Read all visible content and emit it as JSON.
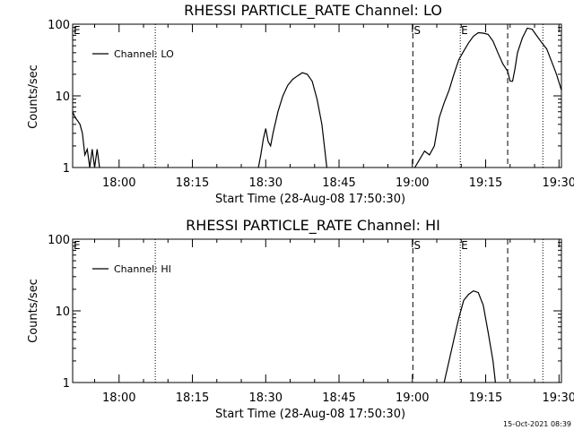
{
  "chart_data": [
    {
      "type": "line",
      "title": "RHESSI PARTICLE_RATE Channel: LO",
      "xlabel": "Start Time (28-Aug-08 17:50:30)",
      "ylabel": "Counts/sec",
      "y_scale": "log",
      "ylim": [
        1,
        100
      ],
      "xlim_minutes_from_start": [
        0,
        100
      ],
      "x_ticks": [
        "18:00",
        "18:15",
        "18:30",
        "18:45",
        "19:00",
        "19:15",
        "19:30"
      ],
      "y_ticks": [
        "1",
        "10",
        "100"
      ],
      "legend": {
        "position": "top-left",
        "entries": [
          "Channel: LO"
        ]
      },
      "series": [
        {
          "name": "Channel: LO",
          "points": [
            [
              0,
              6
            ],
            [
              0.5,
              5
            ],
            [
              1,
              4.5
            ],
            [
              1.5,
              4
            ],
            [
              2,
              3
            ],
            [
              2.5,
              1.5
            ],
            [
              3,
              1.8
            ],
            [
              3.5,
              1
            ],
            [
              4,
              1.8
            ],
            [
              4.5,
              1
            ],
            [
              5,
              1.8
            ],
            [
              5.5,
              1
            ],
            [
              38,
              1
            ],
            [
              38.5,
              1.5
            ],
            [
              39,
              2.5
            ],
            [
              39.5,
              3.5
            ],
            [
              40,
              2.3
            ],
            [
              40.5,
              2
            ],
            [
              41,
              3
            ],
            [
              42,
              6
            ],
            [
              43,
              10
            ],
            [
              44,
              14
            ],
            [
              45,
              17
            ],
            [
              46,
              19
            ],
            [
              47,
              21
            ],
            [
              48,
              20
            ],
            [
              49,
              16
            ],
            [
              50,
              9
            ],
            [
              51,
              4
            ],
            [
              52,
              1
            ],
            [
              70,
              1
            ],
            [
              71,
              1.3
            ],
            [
              72,
              1.7
            ],
            [
              73,
              1.5
            ],
            [
              74,
              2
            ],
            [
              75,
              5
            ],
            [
              76,
              8
            ],
            [
              77,
              12
            ],
            [
              78,
              20
            ],
            [
              79,
              32
            ],
            [
              80,
              42
            ],
            [
              81,
              55
            ],
            [
              82,
              68
            ],
            [
              83,
              76
            ],
            [
              84,
              75
            ],
            [
              85,
              72
            ],
            [
              86,
              58
            ],
            [
              87,
              40
            ],
            [
              88,
              28
            ],
            [
              89,
              22
            ],
            [
              89.5,
              16
            ],
            [
              90,
              16
            ],
            [
              90.5,
              24
            ],
            [
              91,
              40
            ],
            [
              92,
              64
            ],
            [
              93,
              88
            ],
            [
              94,
              85
            ],
            [
              95,
              68
            ],
            [
              96,
              55
            ],
            [
              97,
              45
            ],
            [
              98,
              30
            ],
            [
              99,
              20
            ],
            [
              100,
              12
            ]
          ]
        }
      ],
      "vlines": [
        {
          "minute": 16.9,
          "style": "dotted",
          "label": ""
        },
        {
          "minute": 69.6,
          "style": "dashed",
          "label": "S"
        },
        {
          "minute": 79.3,
          "style": "dotted",
          "label": "E"
        },
        {
          "minute": 89.0,
          "style": "dashed",
          "label": ""
        },
        {
          "minute": 96.2,
          "style": "dotted",
          "label": ""
        }
      ],
      "edge_label": "E"
    },
    {
      "type": "line",
      "title": "RHESSI PARTICLE_RATE Channel: HI",
      "xlabel": "Start Time (28-Aug-08 17:50:30)",
      "ylabel": "Counts/sec",
      "y_scale": "log",
      "ylim": [
        1,
        100
      ],
      "xlim_minutes_from_start": [
        0,
        100
      ],
      "x_ticks": [
        "18:00",
        "18:15",
        "18:30",
        "18:45",
        "19:00",
        "19:15",
        "19:30"
      ],
      "y_ticks": [
        "1",
        "10",
        "100"
      ],
      "legend": {
        "position": "top-left",
        "entries": [
          "Channel: HI"
        ]
      },
      "series": [
        {
          "name": "Channel: HI",
          "points": [
            [
              76,
              1
            ],
            [
              77,
              2
            ],
            [
              78,
              4
            ],
            [
              79,
              8
            ],
            [
              80,
              14
            ],
            [
              81,
              17
            ],
            [
              82,
              19
            ],
            [
              83,
              18
            ],
            [
              84,
              12
            ],
            [
              85,
              5
            ],
            [
              86,
              2
            ],
            [
              86.5,
              1
            ]
          ]
        }
      ],
      "vlines": [
        {
          "minute": 16.9,
          "style": "dotted",
          "label": ""
        },
        {
          "minute": 69.6,
          "style": "dashed",
          "label": "S"
        },
        {
          "minute": 79.3,
          "style": "dotted",
          "label": "E"
        },
        {
          "minute": 89.0,
          "style": "dashed",
          "label": ""
        },
        {
          "minute": 96.2,
          "style": "dotted",
          "label": ""
        }
      ],
      "edge_label": "E"
    }
  ],
  "footer": {
    "timestamp": "15-Oct-2021 08:39"
  }
}
